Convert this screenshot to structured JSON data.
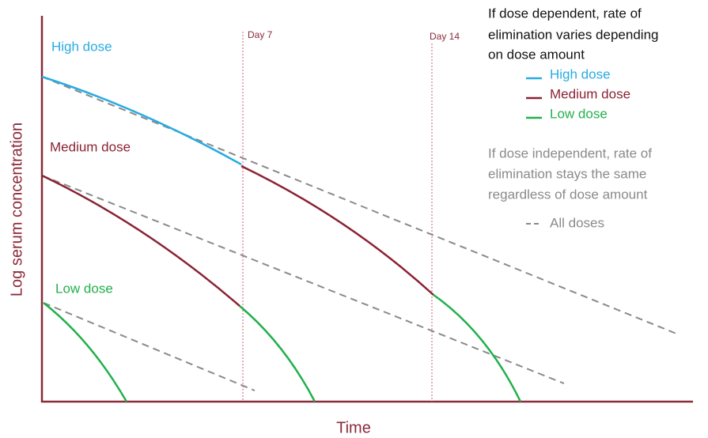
{
  "plot": {
    "y_axis_label": "Log serum concentration",
    "x_axis_label": "Time",
    "curve_labels": [
      "High dose",
      "Medium dose",
      "Low dose"
    ],
    "markers": [
      "Day 7",
      "Day 14"
    ]
  },
  "legend": {
    "dependent_note": [
      "If dose dependent, rate of",
      "elimination varies depending",
      "on dose amount"
    ],
    "entries": [
      "High dose",
      "Medium dose",
      "Low dose"
    ],
    "independent_note": [
      "If dose independent, rate of",
      "elimination stays the same",
      "regardless of dose amount"
    ],
    "all_doses": "All doses"
  }
}
